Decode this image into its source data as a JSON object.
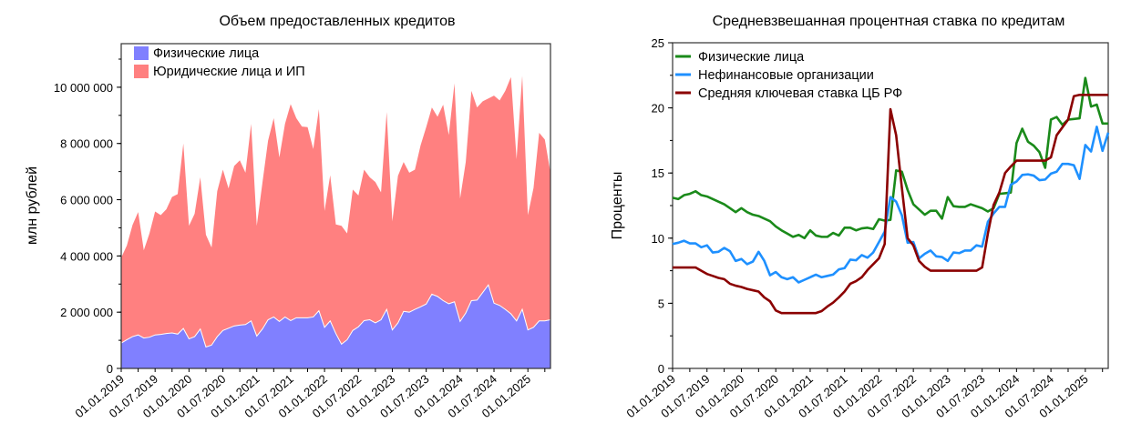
{
  "chart_data": [
    {
      "type": "area",
      "stacked": true,
      "title": "Объем предоставленных кредитов",
      "xlabel": "",
      "ylabel": "млн рублей",
      "x_start": "2019-01",
      "x_step": "month",
      "value_multiplier": 1000000,
      "ylim": [
        0,
        11500000
      ],
      "yticks": [
        "0",
        "2 000 000",
        "4 000 000",
        "6 000 000",
        "8 000 000",
        "10 000 000"
      ],
      "xticks": [
        "01.01.2019",
        "01.07.2019",
        "01.01.2020",
        "01.07.2020",
        "01.01.2021",
        "01.07.2021",
        "01.01.2022",
        "01.07.2022",
        "01.01.2023",
        "01.07.2023",
        "01.01.2024",
        "01.07.2024",
        "01.01.2025"
      ],
      "legend_position": "top-left",
      "series": [
        {
          "name": "Физические лица",
          "color": "#8080ff",
          "values": [
            0.9,
            1.02,
            1.13,
            1.19,
            1.08,
            1.11,
            1.19,
            1.21,
            1.24,
            1.26,
            1.22,
            1.42,
            1.05,
            1.13,
            1.4,
            0.76,
            0.83,
            1.13,
            1.35,
            1.43,
            1.51,
            1.54,
            1.56,
            1.69,
            1.15,
            1.4,
            1.73,
            1.83,
            1.67,
            1.83,
            1.7,
            1.8,
            1.8,
            1.8,
            1.83,
            2.05,
            1.46,
            1.69,
            1.24,
            0.86,
            1.02,
            1.35,
            1.48,
            1.7,
            1.73,
            1.62,
            1.73,
            2.1,
            1.37,
            1.62,
            2.03,
            2.0,
            2.1,
            2.19,
            2.29,
            2.64,
            2.56,
            2.41,
            2.3,
            2.37,
            1.67,
            1.97,
            2.41,
            2.43,
            2.7,
            2.97,
            2.32,
            2.24,
            2.1,
            1.94,
            1.69,
            2.1,
            1.37,
            1.46,
            1.69,
            1.69,
            1.73
          ]
        },
        {
          "name": "Юридические лица и ИП",
          "color": "#ff8080",
          "values": [
            3.04,
            3.35,
            3.97,
            4.37,
            3.12,
            3.69,
            4.39,
            4.24,
            4.42,
            4.84,
            4.98,
            6.58,
            4.02,
            4.37,
            5.4,
            3.99,
            3.47,
            5.17,
            5.72,
            4.97,
            5.69,
            5.86,
            5.4,
            7.01,
            3.92,
            5.2,
            6.37,
            7.07,
            5.83,
            6.87,
            7.7,
            7.1,
            6.8,
            6.78,
            5.97,
            7.17,
            4.14,
            5.18,
            3.88,
            4.21,
            3.78,
            5.01,
            4.67,
            5.37,
            5.07,
            5.01,
            4.53,
            7.02,
            3.86,
            5.23,
            5.31,
            4.96,
            4.97,
            5.74,
            6.29,
            6.64,
            6.39,
            6.97,
            6.0,
            7.77,
            4.37,
            5.37,
            7.46,
            6.85,
            6.8,
            6.63,
            7.38,
            7.29,
            7.77,
            8.42,
            5.75,
            8.31,
            4.08,
            4.96,
            6.69,
            6.45,
            5.23
          ]
        }
      ]
    },
    {
      "type": "line",
      "title": "Средневзвешанная процентная ставка по кредитам",
      "xlabel": "",
      "ylabel": "Проценты",
      "x_start": "2019-01",
      "x_step": "month",
      "ylim": [
        0,
        25
      ],
      "yticks": [
        "0",
        "5",
        "10",
        "15",
        "20",
        "25"
      ],
      "xticks": [
        "01.01.2019",
        "01.07.2019",
        "01.01.2020",
        "01.07.2020",
        "01.01.2021",
        "01.07.2021",
        "01.01.2022",
        "01.07.2022",
        "01.01.2023",
        "01.07.2023",
        "01.01.2024",
        "01.07.2024",
        "01.01.2025"
      ],
      "legend_position": "top-left",
      "series": [
        {
          "name": "Физические лица",
          "color": "#1a8a1a",
          "values": [
            13.1,
            13.0,
            13.3,
            13.4,
            13.6,
            13.3,
            13.2,
            13.0,
            12.8,
            12.6,
            12.3,
            12.0,
            12.3,
            12.0,
            11.8,
            11.7,
            11.5,
            11.3,
            10.9,
            10.6,
            10.35,
            10.1,
            10.25,
            10.0,
            10.6,
            10.2,
            10.1,
            10.1,
            10.4,
            10.2,
            10.8,
            10.8,
            10.6,
            10.75,
            10.8,
            10.7,
            11.45,
            11.35,
            11.4,
            15.2,
            15.1,
            13.7,
            12.6,
            12.2,
            11.8,
            12.1,
            12.1,
            11.5,
            13.15,
            12.45,
            12.4,
            12.4,
            12.6,
            12.45,
            12.3,
            12.05,
            12.3,
            13.4,
            13.45,
            13.5,
            17.3,
            18.4,
            17.4,
            17.1,
            16.6,
            15.4,
            19.1,
            19.3,
            18.7,
            19.1,
            19.15,
            19.2,
            22.3,
            20.1,
            20.25,
            18.8,
            18.8
          ]
        },
        {
          "name": "Нефинансовые организации",
          "color": "#1e90ff",
          "values": [
            9.55,
            9.65,
            9.8,
            9.6,
            9.6,
            9.3,
            9.45,
            8.9,
            8.95,
            9.25,
            9.0,
            8.25,
            8.4,
            8.0,
            8.2,
            8.95,
            8.25,
            7.15,
            7.4,
            7.0,
            6.85,
            7.0,
            6.6,
            6.8,
            7.0,
            7.2,
            7.0,
            7.1,
            7.2,
            7.6,
            7.7,
            8.35,
            8.3,
            8.7,
            8.5,
            8.9,
            9.7,
            10.5,
            13.15,
            12.8,
            11.75,
            9.65,
            9.7,
            8.45,
            8.8,
            9.05,
            8.6,
            8.55,
            8.25,
            8.9,
            8.85,
            9.05,
            9.05,
            9.45,
            9.35,
            11.25,
            11.9,
            12.4,
            12.4,
            14.1,
            14.35,
            14.85,
            14.9,
            14.8,
            14.45,
            14.5,
            14.95,
            15.1,
            15.7,
            15.7,
            15.6,
            14.55,
            17.15,
            16.65,
            18.55,
            16.7,
            18.1
          ]
        },
        {
          "name": "Средняя ключевая ставка ЦБ РФ",
          "color": "#8b0000",
          "values": [
            7.75,
            7.75,
            7.75,
            7.75,
            7.75,
            7.5,
            7.25,
            7.1,
            6.95,
            6.85,
            6.5,
            6.35,
            6.25,
            6.1,
            6.0,
            5.9,
            5.45,
            5.15,
            4.45,
            4.25,
            4.25,
            4.25,
            4.25,
            4.25,
            4.25,
            4.25,
            4.4,
            4.75,
            5.05,
            5.45,
            5.9,
            6.5,
            6.7,
            7.0,
            7.55,
            8.0,
            8.45,
            9.55,
            19.9,
            17.9,
            13.85,
            10.0,
            9.45,
            8.25,
            7.8,
            7.5,
            7.5,
            7.5,
            7.5,
            7.5,
            7.5,
            7.5,
            7.5,
            7.5,
            7.75,
            10.35,
            12.55,
            13.5,
            15.0,
            15.5,
            15.95,
            15.95,
            15.95,
            15.95,
            15.95,
            15.95,
            16.2,
            17.9,
            18.5,
            19.1,
            20.9,
            21,
            21,
            21,
            21,
            21,
            21
          ]
        }
      ]
    }
  ]
}
